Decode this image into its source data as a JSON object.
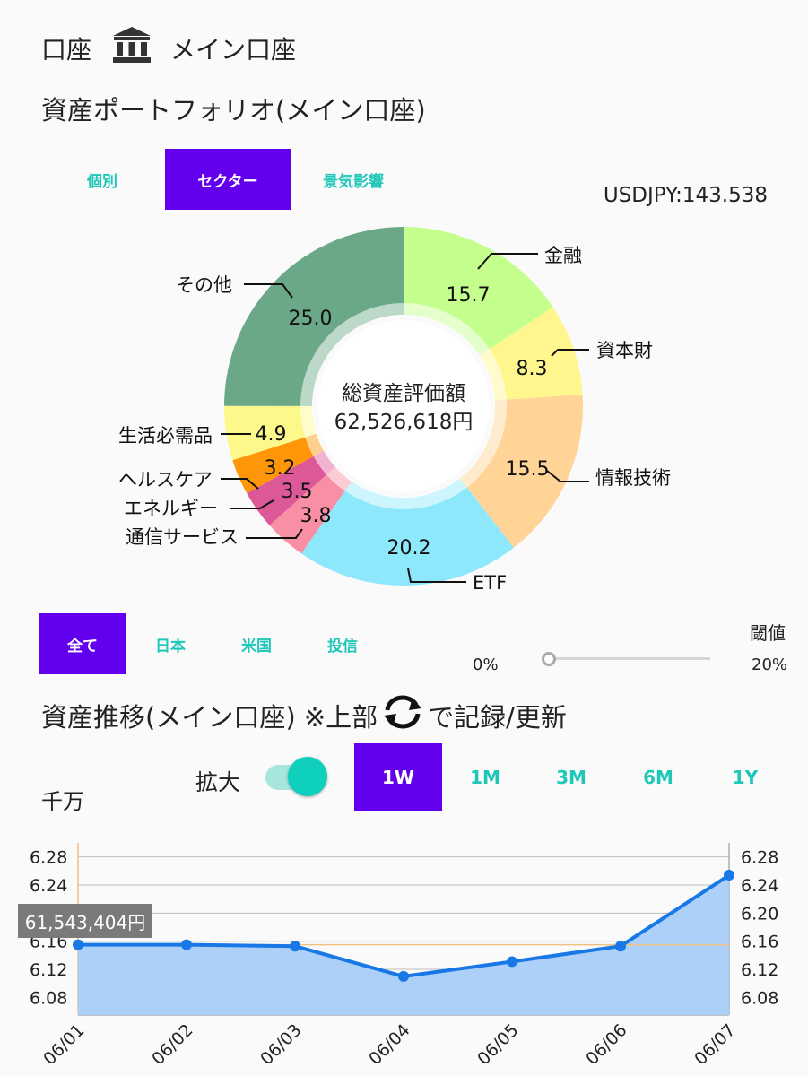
{
  "header": {
    "label": "口座",
    "account": "メイン口座"
  },
  "portfolio": {
    "title": "資産ポートフォリオ(メイン口座)",
    "view_tabs": [
      {
        "label": "個別",
        "active": false
      },
      {
        "label": "セクター",
        "active": true
      },
      {
        "label": "景気影響",
        "active": false
      }
    ],
    "fx": "USDJPY:143.538",
    "center_label": "総資産評価額",
    "center_value": "62,526,618円"
  },
  "filter": {
    "tabs": [
      {
        "label": "全て",
        "active": true
      },
      {
        "label": "日本",
        "active": false
      },
      {
        "label": "米国",
        "active": false
      },
      {
        "label": "投信",
        "active": false
      }
    ],
    "threshold_label": "閾値",
    "threshold_min": "0%",
    "threshold_max": "20%",
    "threshold_value": 0
  },
  "trend": {
    "title_pre": "資産推移(メイン口座) ※上部",
    "title_post": "で記録/更新",
    "unit": "千万",
    "zoom_label": "拡大",
    "zoom_on": true,
    "ranges": [
      {
        "label": "1W",
        "active": true
      },
      {
        "label": "1M",
        "active": false
      },
      {
        "label": "3M",
        "active": false
      },
      {
        "label": "6M",
        "active": false
      },
      {
        "label": "1Y",
        "active": false
      }
    ],
    "tooltip": "61,543,404円"
  },
  "chart_data": [
    {
      "type": "pie",
      "categories": [
        "金融",
        "資本財",
        "情報技術",
        "ETF",
        "通信サービス",
        "エネルギー",
        "ヘルスケア",
        "生活必需品",
        "その他"
      ],
      "values": [
        15.7,
        8.3,
        15.5,
        20.2,
        3.8,
        3.5,
        3.2,
        4.9,
        25.0
      ],
      "colors": [
        "#c4ff8e",
        "#fff68e",
        "#ffd496",
        "#8ee8fc",
        "#f98fa4",
        "#dd5897",
        "#ff9608",
        "#fcf98a",
        "#6aa888"
      ]
    },
    {
      "type": "area",
      "x": [
        "06/01",
        "06/02",
        "06/03",
        "06/04",
        "06/05",
        "06/06",
        "06/07"
      ],
      "values": [
        6.155,
        6.155,
        6.153,
        6.11,
        6.131,
        6.153,
        6.254
      ],
      "y_ticks": [
        "6.08",
        "6.12",
        "6.16",
        "6.20",
        "6.24",
        "6.28"
      ],
      "ylim": [
        6.055,
        6.3
      ],
      "line_color": "#1778e6",
      "fill_color": "#a9cdf9",
      "grid": true
    }
  ]
}
